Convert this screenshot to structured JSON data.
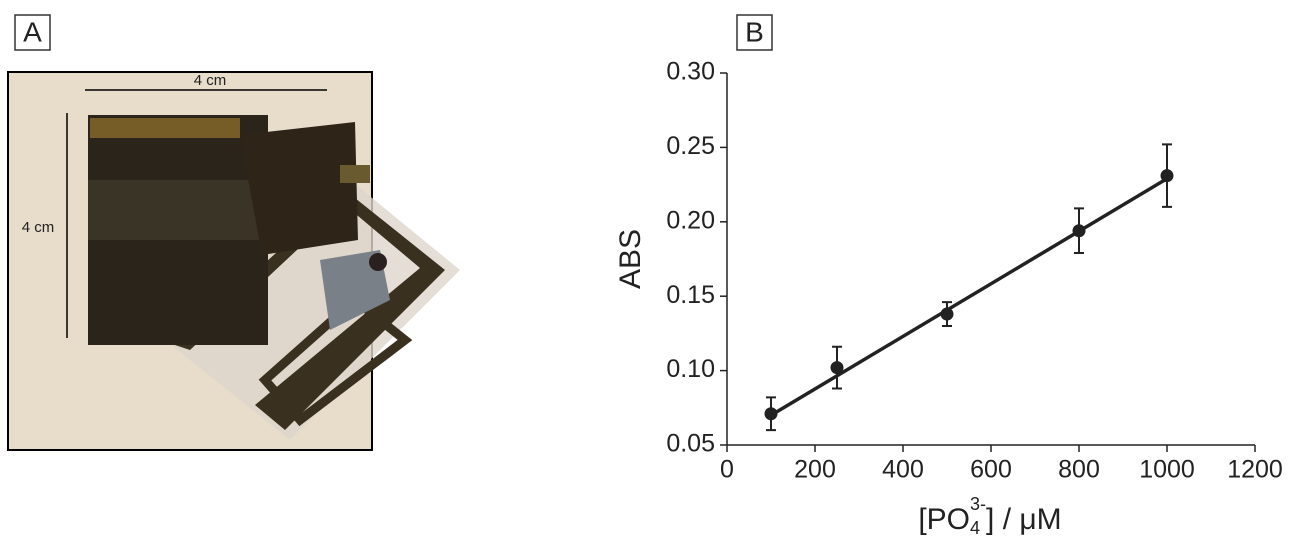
{
  "panel_a": {
    "label": "A",
    "scale_labels": [
      "4 cm",
      "4 cm"
    ]
  },
  "chart_data": {
    "type": "scatter",
    "panel_label": "B",
    "xlabel_parts": [
      "[PO",
      "4",
      "3-",
      "] / μM"
    ],
    "ylabel": "ABS",
    "x": [
      100,
      250,
      500,
      800,
      1000
    ],
    "series": [
      {
        "color": "#222222",
        "values": [
          0.071,
          0.102,
          0.138,
          0.194,
          0.231
        ],
        "errors": [
          0.011,
          0.014,
          0.008,
          0.015,
          0.021
        ]
      }
    ],
    "fit": {
      "x": [
        100,
        1000
      ],
      "y": [
        0.07,
        0.229
      ]
    },
    "xlim": [
      0,
      1200
    ],
    "xticks": [
      0,
      200,
      400,
      600,
      800,
      1000,
      1200
    ],
    "ylim": [
      0.05,
      0.3
    ],
    "yticks": [
      0.05,
      {
        "value": 0.1,
        "label": "0.10"
      },
      0.15,
      {
        "value": 0.2,
        "label": "0.20"
      },
      0.25,
      {
        "value": 0.3,
        "label": "0.30"
      }
    ]
  }
}
